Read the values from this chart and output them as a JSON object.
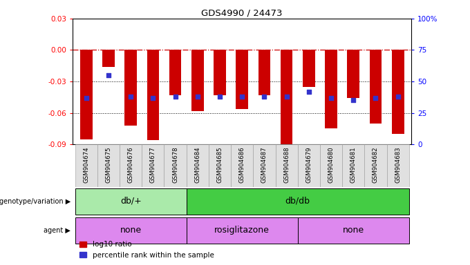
{
  "title": "GDS4990 / 24473",
  "samples": [
    "GSM904674",
    "GSM904675",
    "GSM904676",
    "GSM904677",
    "GSM904678",
    "GSM904684",
    "GSM904685",
    "GSM904686",
    "GSM904687",
    "GSM904688",
    "GSM904679",
    "GSM904680",
    "GSM904681",
    "GSM904682",
    "GSM904683"
  ],
  "log10_ratio": [
    -0.085,
    -0.016,
    -0.072,
    -0.086,
    -0.043,
    -0.058,
    -0.043,
    -0.056,
    -0.043,
    -0.09,
    -0.035,
    -0.075,
    -0.046,
    -0.07,
    -0.08
  ],
  "percentile_rank": [
    37,
    55,
    38,
    37,
    38,
    38,
    38,
    38,
    38,
    38,
    42,
    37,
    35,
    37,
    38
  ],
  "ylim_left": [
    -0.09,
    0.03
  ],
  "ylim_right": [
    0,
    100
  ],
  "yticks_left": [
    -0.09,
    -0.06,
    -0.03,
    0,
    0.03
  ],
  "yticks_right": [
    0,
    25,
    50,
    75,
    100
  ],
  "bar_color": "#cc0000",
  "dot_color": "#3333cc",
  "hline_color": "#cc0000",
  "dotted_line_color": "#000000",
  "background_color": "#ffffff",
  "title_color": "#000000",
  "groups": [
    {
      "label": "db/+",
      "start": 0,
      "end": 5,
      "color": "#aaeaaa"
    },
    {
      "label": "db/db",
      "start": 5,
      "end": 15,
      "color": "#44cc44"
    }
  ],
  "agents": [
    {
      "label": "none",
      "start": 0,
      "end": 5,
      "color": "#dd88ee"
    },
    {
      "label": "rosiglitazone",
      "start": 5,
      "end": 10,
      "color": "#dd88ee"
    },
    {
      "label": "none",
      "start": 10,
      "end": 15,
      "color": "#dd88ee"
    }
  ],
  "legend_red_label": "log10 ratio",
  "legend_blue_label": "percentile rank within the sample",
  "bar_width": 0.55
}
